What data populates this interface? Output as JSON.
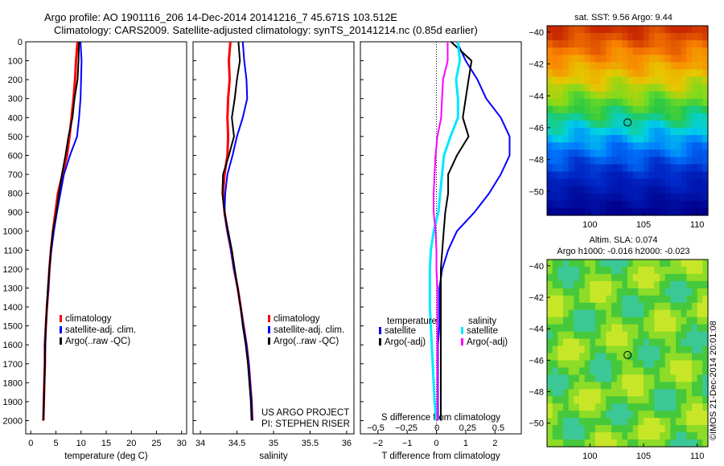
{
  "header": {
    "line1": "Argo profile: AO 1901116_206 14-Dec-2014 20141216_7 45.671S 103.512E",
    "line2": "Climatology: CARS2009. Satellite-adjusted climatology: synTS_20141214.nc (0.85d earlier)"
  },
  "colors": {
    "climatology": "#ff0000",
    "satellite": "#0000ff",
    "argo": "#000000",
    "sal_sat": "#00e8ff",
    "sal_argo": "#ff00ff"
  },
  "credit": {
    "project": "US ARGO PROJECT",
    "pi": "PI: STEPHEN RISER",
    "imos": "©IMOS 21-Dec-2014 20:01:08"
  },
  "map_sst": {
    "title": "sat. SST: 9.56  Argo: 9.44"
  },
  "map_sla": {
    "title1": "Altim. SLA: 0.074",
    "title2": "Argo h1000: -0.016  h2000: -0.023"
  },
  "chart_data": [
    {
      "type": "line",
      "xlabel": "temperature (deg C)",
      "xlim": [
        -1,
        31
      ],
      "ylim": [
        2070,
        0
      ],
      "xticks": [
        0,
        5,
        10,
        15,
        20,
        25,
        30
      ],
      "yticks": [
        0,
        100,
        200,
        300,
        400,
        500,
        600,
        700,
        800,
        900,
        1000,
        1100,
        1200,
        1300,
        1400,
        1500,
        1600,
        1700,
        1800,
        1900,
        2000
      ],
      "legend": [
        "climatology",
        "satellite-adj. clim.",
        "Argo(..raw -QC)"
      ],
      "series": [
        {
          "name": "climatology",
          "color": "#ff0000",
          "width": 3,
          "x": [
            9.3,
            9.0,
            8.8,
            8.5,
            8.1,
            7.7,
            7.2,
            6.3,
            5.4,
            4.9,
            4.4,
            4.0,
            3.7,
            3.5,
            3.2,
            3.0,
            2.8,
            2.8,
            2.7,
            2.6,
            2.5
          ],
          "y": [
            0,
            100,
            200,
            300,
            400,
            500,
            600,
            700,
            800,
            900,
            1000,
            1100,
            1200,
            1300,
            1400,
            1500,
            1600,
            1700,
            1800,
            1900,
            2000
          ]
        },
        {
          "name": "satellite-adj. clim.",
          "color": "#0000ff",
          "width": 2,
          "x": [
            9.9,
            10.1,
            10.0,
            9.9,
            9.6,
            9.2,
            7.8,
            6.6,
            5.9,
            5.2,
            4.6,
            4.1,
            3.7,
            3.5,
            3.2,
            3.0,
            2.8,
            2.8,
            2.7,
            2.6,
            2.5
          ],
          "y": [
            0,
            100,
            200,
            300,
            400,
            500,
            600,
            700,
            800,
            900,
            1000,
            1100,
            1200,
            1300,
            1400,
            1500,
            1600,
            1700,
            1800,
            1900,
            2000
          ]
        },
        {
          "name": "Argo(..raw -QC)",
          "color": "#000000",
          "width": 2,
          "x": [
            9.6,
            9.5,
            9.3,
            8.7,
            8.3,
            7.5,
            6.9,
            6.2,
            5.6,
            5.1,
            4.4,
            4.0,
            3.7,
            3.4,
            3.2,
            3.0,
            2.9,
            2.8,
            2.7,
            2.6,
            2.5
          ],
          "y": [
            0,
            100,
            200,
            300,
            400,
            500,
            600,
            700,
            800,
            900,
            1000,
            1100,
            1200,
            1300,
            1400,
            1500,
            1600,
            1700,
            1800,
            1900,
            2000
          ]
        }
      ]
    },
    {
      "type": "line",
      "xlabel": "salinity",
      "xlim": [
        33.9,
        36.1
      ],
      "ylim": [
        2070,
        0
      ],
      "xticks": [
        34,
        34.5,
        35,
        35.5,
        36
      ],
      "legend": [
        "climatology",
        "satellite-adj. clim.",
        "Argo(..raw -QC)"
      ],
      "series": [
        {
          "name": "climatology",
          "color": "#ff0000",
          "width": 3,
          "x": [
            34.41,
            34.39,
            34.4,
            34.38,
            34.37,
            34.38,
            34.37,
            34.33,
            34.31,
            34.33,
            34.37,
            34.42,
            34.46,
            34.51,
            34.55,
            34.59,
            34.63,
            34.66,
            34.68,
            34.7,
            34.71
          ],
          "y": [
            0,
            100,
            200,
            300,
            400,
            500,
            600,
            700,
            800,
            900,
            1000,
            1100,
            1200,
            1300,
            1400,
            1500,
            1600,
            1700,
            1800,
            1900,
            2000
          ]
        },
        {
          "name": "satellite-adj. clim.",
          "color": "#0000ff",
          "width": 2,
          "x": [
            34.58,
            34.6,
            34.63,
            34.64,
            34.58,
            34.5,
            34.44,
            34.37,
            34.34,
            34.33,
            34.37,
            34.42,
            34.46,
            34.51,
            34.55,
            34.59,
            34.63,
            34.66,
            34.68,
            34.7,
            34.71
          ],
          "y": [
            0,
            100,
            200,
            300,
            400,
            500,
            600,
            700,
            800,
            900,
            1000,
            1100,
            1200,
            1300,
            1400,
            1500,
            1600,
            1700,
            1800,
            1900,
            2000
          ]
        },
        {
          "name": "Argo(..raw -QC)",
          "color": "#000000",
          "width": 2,
          "x": [
            34.52,
            34.54,
            34.5,
            34.47,
            34.43,
            34.46,
            34.39,
            34.31,
            34.3,
            34.33,
            34.38,
            34.43,
            34.47,
            34.51,
            34.55,
            34.58,
            34.62,
            34.65,
            34.67,
            34.69,
            34.7
          ],
          "y": [
            0,
            100,
            200,
            300,
            400,
            500,
            600,
            700,
            800,
            900,
            1000,
            1100,
            1200,
            1300,
            1400,
            1500,
            1600,
            1700,
            1800,
            1900,
            2000
          ]
        }
      ]
    },
    {
      "type": "line",
      "xlabel": "T difference from climatology",
      "xlabel_top": "S difference from climatology",
      "xlim": [
        -2.6,
        2.9
      ],
      "ylim": [
        2070,
        0
      ],
      "xticks": [
        -2,
        -1,
        0,
        1,
        2
      ],
      "xticks_s": [
        -0.5,
        -0.25,
        0,
        0.25,
        0.5
      ],
      "legend": {
        "temperature": [
          "satellite",
          "Argo(-adj)"
        ],
        "salinity": [
          "satellite",
          "Argo(-adj)"
        ]
      },
      "series": [
        {
          "name": "satellite",
          "group": "temperature",
          "color": "#0000ff",
          "width": 2,
          "x": [
            0.7,
            1.0,
            1.4,
            1.7,
            2.2,
            2.5,
            2.5,
            2.2,
            1.8,
            1.3,
            0.7,
            0.4,
            0.2,
            0.1,
            0.1,
            0.1,
            0.05,
            0.05,
            0.05,
            0.05,
            0.05
          ],
          "y": [
            0,
            100,
            200,
            300,
            400,
            500,
            600,
            700,
            800,
            900,
            1000,
            1100,
            1200,
            1300,
            1400,
            1500,
            1600,
            1700,
            1800,
            1900,
            2000
          ]
        },
        {
          "name": "Argo(-adj)",
          "group": "temperature",
          "color": "#000000",
          "width": 2,
          "x": [
            0.5,
            1.2,
            1.1,
            1.0,
            0.9,
            1.1,
            0.7,
            0.4,
            0.4,
            0.3,
            0.25,
            0.2,
            0.15,
            0.15,
            0.15,
            0.15,
            0.15,
            0.15,
            0.15,
            0.15,
            0.15
          ],
          "y": [
            0,
            100,
            200,
            300,
            400,
            500,
            600,
            700,
            800,
            900,
            1000,
            1100,
            1200,
            1300,
            1400,
            1500,
            1600,
            1700,
            1800,
            1900,
            2000
          ]
        },
        {
          "name": "satellite",
          "group": "salinity",
          "color": "#00e8ff",
          "width": 3,
          "x": [
            0.23,
            0.25,
            0.21,
            0.23,
            0.23,
            0.15,
            0.08,
            0.06,
            0.04,
            0.02,
            -0.03,
            -0.06,
            -0.07,
            -0.07,
            -0.07,
            -0.06,
            -0.05,
            -0.04,
            -0.03,
            -0.02,
            0.0
          ],
          "y": [
            0,
            100,
            200,
            300,
            400,
            500,
            600,
            700,
            800,
            900,
            1000,
            1100,
            1200,
            1300,
            1400,
            1500,
            1600,
            1700,
            1800,
            1900,
            2000
          ]
        },
        {
          "name": "Argo(-adj)",
          "group": "salinity",
          "color": "#ff00ff",
          "width": 2,
          "x": [
            0.12,
            0.12,
            0.07,
            0.06,
            0.05,
            0.01,
            -0.01,
            -0.02,
            -0.03,
            -0.03,
            -0.01,
            0.0,
            0.0,
            0.01,
            0.01,
            0.01,
            0.01,
            0.01,
            0.01,
            0.01,
            0.01
          ],
          "y": [
            0,
            100,
            200,
            300,
            400,
            500,
            600,
            700,
            800,
            900,
            1000,
            1100,
            1200,
            1300,
            1400,
            1500,
            1600,
            1700,
            1800,
            1900,
            2000
          ]
        }
      ]
    },
    {
      "type": "heatmap",
      "title": "sat. SST: 9.56  Argo: 9.44",
      "xlim": [
        96,
        111
      ],
      "ylim": [
        -51.5,
        -39.6
      ],
      "xticks": [
        100,
        105,
        110
      ],
      "yticks": [
        -40,
        -42,
        -44,
        -46,
        -48,
        -50
      ],
      "marker": {
        "lon": 103.512,
        "lat": -45.671
      }
    },
    {
      "type": "heatmap",
      "title": "Altim. SLA: 0.074",
      "subtitle": "Argo h1000: -0.016  h2000: -0.023",
      "xlim": [
        96,
        111
      ],
      "ylim": [
        -51.5,
        -39.6
      ],
      "xticks": [
        100,
        105,
        110
      ],
      "yticks": [
        -40,
        -42,
        -44,
        -46,
        -48,
        -50
      ],
      "marker": {
        "lon": 103.512,
        "lat": -45.671
      }
    }
  ]
}
